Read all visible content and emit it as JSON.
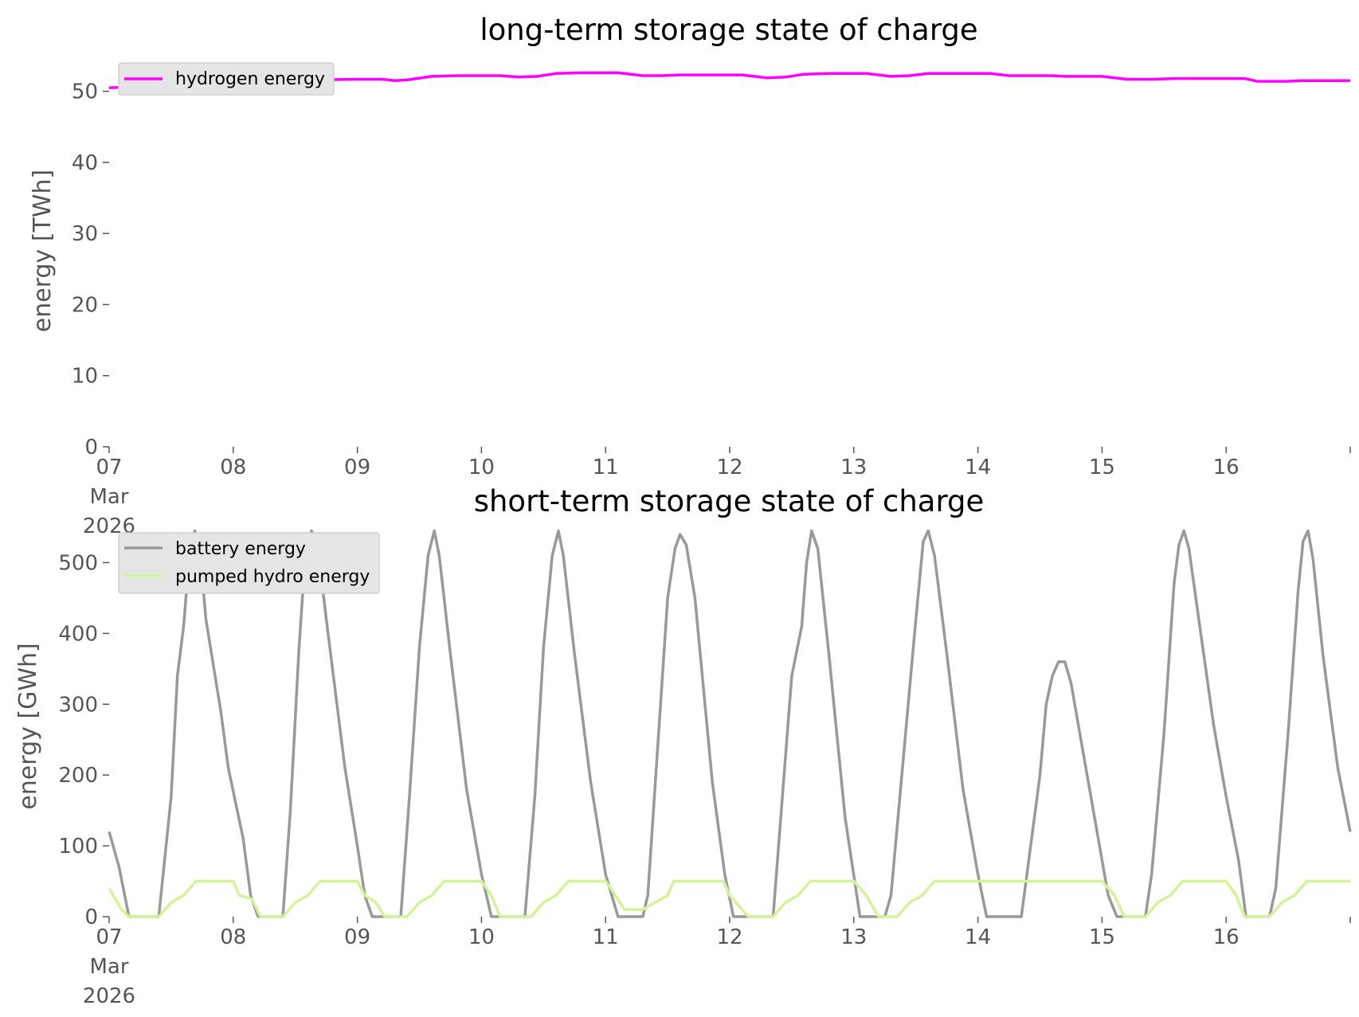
{
  "chart_data": [
    {
      "type": "line",
      "title": "long-term storage state of charge",
      "ylabel": "energy [TWh]",
      "xlabel": "",
      "x_unit": "days since 07 Mar 2026",
      "xlim": [
        0,
        10
      ],
      "ylim": [
        0,
        55
      ],
      "yticks": [
        0,
        10,
        20,
        30,
        40,
        50
      ],
      "xticks": [
        {
          "x": 0,
          "label": "07",
          "sub": [
            "Mar",
            "2026"
          ]
        },
        {
          "x": 1,
          "label": "08"
        },
        {
          "x": 2,
          "label": "09"
        },
        {
          "x": 3,
          "label": "10"
        },
        {
          "x": 4,
          "label": "11"
        },
        {
          "x": 5,
          "label": "12"
        },
        {
          "x": 6,
          "label": "13"
        },
        {
          "x": 7,
          "label": "14"
        },
        {
          "x": 8,
          "label": "15"
        },
        {
          "x": 9,
          "label": "16"
        }
      ],
      "legend": "top-left",
      "grid": false,
      "series": [
        {
          "name": "hydrogen energy",
          "color": "#ff00ff",
          "points": [
            [
              0,
              50.5
            ],
            [
              0.15,
              50.6
            ],
            [
              0.3,
              50.3
            ],
            [
              0.45,
              50.6
            ],
            [
              0.6,
              51.1
            ],
            [
              0.8,
              51.3
            ],
            [
              1.0,
              51.5
            ],
            [
              1.3,
              51.6
            ],
            [
              1.6,
              51.6
            ],
            [
              2.0,
              51.7
            ],
            [
              2.2,
              51.7
            ],
            [
              2.3,
              51.5
            ],
            [
              2.4,
              51.6
            ],
            [
              2.6,
              52.1
            ],
            [
              2.8,
              52.2
            ],
            [
              3.0,
              52.2
            ],
            [
              3.15,
              52.2
            ],
            [
              3.3,
              52.0
            ],
            [
              3.45,
              52.1
            ],
            [
              3.6,
              52.5
            ],
            [
              3.8,
              52.6
            ],
            [
              4.0,
              52.6
            ],
            [
              4.1,
              52.6
            ],
            [
              4.3,
              52.2
            ],
            [
              4.45,
              52.2
            ],
            [
              4.6,
              52.3
            ],
            [
              4.8,
              52.3
            ],
            [
              5.0,
              52.3
            ],
            [
              5.1,
              52.3
            ],
            [
              5.3,
              51.9
            ],
            [
              5.45,
              52.0
            ],
            [
              5.6,
              52.4
            ],
            [
              5.8,
              52.5
            ],
            [
              6.0,
              52.5
            ],
            [
              6.1,
              52.5
            ],
            [
              6.3,
              52.1
            ],
            [
              6.45,
              52.2
            ],
            [
              6.6,
              52.5
            ],
            [
              6.8,
              52.5
            ],
            [
              7.0,
              52.5
            ],
            [
              7.1,
              52.5
            ],
            [
              7.25,
              52.2
            ],
            [
              7.5,
              52.2
            ],
            [
              7.6,
              52.2
            ],
            [
              7.7,
              52.1
            ],
            [
              8.0,
              52.1
            ],
            [
              8.2,
              51.7
            ],
            [
              8.4,
              51.7
            ],
            [
              8.6,
              51.8
            ],
            [
              9.0,
              51.8
            ],
            [
              9.15,
              51.8
            ],
            [
              9.25,
              51.4
            ],
            [
              9.5,
              51.4
            ],
            [
              9.6,
              51.5
            ],
            [
              10.0,
              51.5
            ]
          ]
        }
      ]
    },
    {
      "type": "line",
      "title": "short-term storage state of charge",
      "ylabel": "energy [GWh]",
      "xlabel": "",
      "x_unit": "days since 07 Mar 2026",
      "xlim": [
        0,
        10
      ],
      "ylim": [
        0,
        550
      ],
      "yticks": [
        0,
        100,
        200,
        300,
        400,
        500
      ],
      "xticks": [
        {
          "x": 0,
          "label": "07",
          "sub": [
            "Mar",
            "2026"
          ]
        },
        {
          "x": 1,
          "label": "08"
        },
        {
          "x": 2,
          "label": "09"
        },
        {
          "x": 3,
          "label": "10"
        },
        {
          "x": 4,
          "label": "11"
        },
        {
          "x": 5,
          "label": "12"
        },
        {
          "x": 6,
          "label": "13"
        },
        {
          "x": 7,
          "label": "14"
        },
        {
          "x": 8,
          "label": "15"
        },
        {
          "x": 9,
          "label": "16"
        }
      ],
      "legend": "top-left",
      "grid": false,
      "series": [
        {
          "name": "battery energy",
          "color": "#999999",
          "points": [
            [
              0,
              120
            ],
            [
              0.08,
              70
            ],
            [
              0.16,
              0
            ],
            [
              0.4,
              0
            ],
            [
              0.5,
              170
            ],
            [
              0.55,
              340
            ],
            [
              0.6,
              410
            ],
            [
              0.65,
              520
            ],
            [
              0.69,
              545
            ],
            [
              0.73,
              520
            ],
            [
              0.78,
              420
            ],
            [
              0.9,
              290
            ],
            [
              0.96,
              210
            ],
            [
              1.08,
              110
            ],
            [
              1.14,
              30
            ],
            [
              1.2,
              0
            ],
            [
              1.4,
              0
            ],
            [
              1.46,
              150
            ],
            [
              1.53,
              380
            ],
            [
              1.58,
              510
            ],
            [
              1.63,
              545
            ],
            [
              1.68,
              525
            ],
            [
              1.75,
              420
            ],
            [
              1.9,
              210
            ],
            [
              2.0,
              100
            ],
            [
              2.06,
              30
            ],
            [
              2.12,
              0
            ],
            [
              2.35,
              0
            ],
            [
              2.42,
              170
            ],
            [
              2.5,
              380
            ],
            [
              2.57,
              510
            ],
            [
              2.62,
              545
            ],
            [
              2.66,
              510
            ],
            [
              2.75,
              370
            ],
            [
              2.88,
              180
            ],
            [
              3.0,
              60
            ],
            [
              3.08,
              0
            ],
            [
              3.35,
              0
            ],
            [
              3.43,
              170
            ],
            [
              3.5,
              380
            ],
            [
              3.57,
              510
            ],
            [
              3.62,
              545
            ],
            [
              3.66,
              510
            ],
            [
              3.75,
              370
            ],
            [
              3.88,
              190
            ],
            [
              4.0,
              60
            ],
            [
              4.1,
              0
            ],
            [
              4.3,
              0
            ],
            [
              4.34,
              30
            ],
            [
              4.5,
              450
            ],
            [
              4.56,
              520
            ],
            [
              4.6,
              540
            ],
            [
              4.65,
              525
            ],
            [
              4.72,
              450
            ],
            [
              4.86,
              190
            ],
            [
              4.96,
              60
            ],
            [
              5.03,
              0
            ],
            [
              5.15,
              0
            ],
            [
              5.35,
              0
            ],
            [
              5.5,
              340
            ],
            [
              5.58,
              410
            ],
            [
              5.62,
              500
            ],
            [
              5.66,
              545
            ],
            [
              5.71,
              520
            ],
            [
              5.8,
              370
            ],
            [
              5.93,
              140
            ],
            [
              6.05,
              0
            ],
            [
              6.25,
              0
            ],
            [
              6.3,
              30
            ],
            [
              6.5,
              420
            ],
            [
              6.56,
              530
            ],
            [
              6.6,
              545
            ],
            [
              6.65,
              510
            ],
            [
              6.75,
              370
            ],
            [
              6.88,
              180
            ],
            [
              7.0,
              60
            ],
            [
              7.07,
              0
            ],
            [
              7.35,
              0
            ],
            [
              7.41,
              80
            ],
            [
              7.5,
              200
            ],
            [
              7.55,
              300
            ],
            [
              7.6,
              340
            ],
            [
              7.65,
              360
            ],
            [
              7.7,
              360
            ],
            [
              7.75,
              330
            ],
            [
              7.85,
              230
            ],
            [
              7.95,
              130
            ],
            [
              8.05,
              30
            ],
            [
              8.12,
              0
            ],
            [
              8.35,
              0
            ],
            [
              8.4,
              60
            ],
            [
              8.5,
              260
            ],
            [
              8.58,
              470
            ],
            [
              8.62,
              525
            ],
            [
              8.66,
              545
            ],
            [
              8.7,
              520
            ],
            [
              8.78,
              420
            ],
            [
              8.9,
              270
            ],
            [
              9.0,
              170
            ],
            [
              9.1,
              80
            ],
            [
              9.16,
              0
            ],
            [
              9.35,
              0
            ],
            [
              9.4,
              40
            ],
            [
              9.5,
              260
            ],
            [
              9.58,
              460
            ],
            [
              9.62,
              530
            ],
            [
              9.66,
              545
            ],
            [
              9.7,
              505
            ],
            [
              9.78,
              370
            ],
            [
              9.9,
              210
            ],
            [
              10.0,
              120
            ]
          ]
        },
        {
          "name": "pumped hydro energy",
          "color": "#d3f399",
          "points": [
            [
              0,
              40
            ],
            [
              0.1,
              10
            ],
            [
              0.16,
              0
            ],
            [
              0.4,
              0
            ],
            [
              0.5,
              20
            ],
            [
              0.6,
              30
            ],
            [
              0.7,
              50
            ],
            [
              0.9,
              50
            ],
            [
              1.0,
              50
            ],
            [
              1.05,
              30
            ],
            [
              1.15,
              25
            ],
            [
              1.22,
              0
            ],
            [
              1.4,
              0
            ],
            [
              1.5,
              20
            ],
            [
              1.6,
              30
            ],
            [
              1.7,
              50
            ],
            [
              1.9,
              50
            ],
            [
              2.0,
              50
            ],
            [
              2.06,
              30
            ],
            [
              2.15,
              20
            ],
            [
              2.22,
              0
            ],
            [
              2.4,
              0
            ],
            [
              2.5,
              20
            ],
            [
              2.6,
              30
            ],
            [
              2.7,
              50
            ],
            [
              2.9,
              50
            ],
            [
              3.0,
              50
            ],
            [
              3.08,
              30
            ],
            [
              3.15,
              0
            ],
            [
              3.4,
              0
            ],
            [
              3.5,
              20
            ],
            [
              3.6,
              30
            ],
            [
              3.7,
              50
            ],
            [
              3.9,
              50
            ],
            [
              4.0,
              50
            ],
            [
              4.08,
              30
            ],
            [
              4.15,
              10
            ],
            [
              4.3,
              10
            ],
            [
              4.4,
              20
            ],
            [
              4.5,
              30
            ],
            [
              4.55,
              50
            ],
            [
              4.7,
              50
            ],
            [
              4.95,
              50
            ],
            [
              5.0,
              30
            ],
            [
              5.15,
              0
            ],
            [
              5.35,
              0
            ],
            [
              5.45,
              20
            ],
            [
              5.55,
              30
            ],
            [
              5.65,
              50
            ],
            [
              5.9,
              50
            ],
            [
              6.0,
              50
            ],
            [
              6.1,
              30
            ],
            [
              6.2,
              0
            ],
            [
              6.35,
              0
            ],
            [
              6.45,
              20
            ],
            [
              6.55,
              30
            ],
            [
              6.65,
              50
            ],
            [
              6.8,
              50
            ],
            [
              7.0,
              50
            ],
            [
              7.4,
              50
            ],
            [
              7.8,
              50
            ],
            [
              8.0,
              50
            ],
            [
              8.1,
              30
            ],
            [
              8.18,
              0
            ],
            [
              8.35,
              0
            ],
            [
              8.45,
              20
            ],
            [
              8.55,
              30
            ],
            [
              8.65,
              50
            ],
            [
              8.85,
              50
            ],
            [
              9.0,
              50
            ],
            [
              9.08,
              30
            ],
            [
              9.15,
              0
            ],
            [
              9.35,
              0
            ],
            [
              9.45,
              20
            ],
            [
              9.55,
              30
            ],
            [
              9.65,
              50
            ],
            [
              9.85,
              50
            ],
            [
              10.0,
              50
            ]
          ]
        }
      ]
    }
  ]
}
